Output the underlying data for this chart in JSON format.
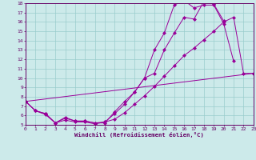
{
  "xlabel": "Windchill (Refroidissement éolien,°C)",
  "bg_color": "#cceaea",
  "line_color": "#990099",
  "grid_color": "#99cccc",
  "xmin": 0,
  "xmax": 23,
  "ymin": 5,
  "ymax": 18,
  "xticks": [
    0,
    1,
    2,
    3,
    4,
    5,
    6,
    7,
    8,
    9,
    10,
    11,
    12,
    13,
    14,
    15,
    16,
    17,
    18,
    19,
    20,
    21,
    22,
    23
  ],
  "yticks": [
    5,
    6,
    7,
    8,
    9,
    10,
    11,
    12,
    13,
    14,
    15,
    16,
    17,
    18
  ],
  "series1_x": [
    0,
    1,
    2,
    3,
    4,
    5,
    6,
    7,
    8,
    9,
    10,
    11,
    12,
    13,
    14,
    15,
    16,
    17,
    18,
    19,
    20,
    21
  ],
  "series1_y": [
    7.5,
    6.5,
    6.2,
    5.2,
    5.7,
    5.4,
    5.4,
    5.2,
    5.3,
    6.2,
    7.2,
    8.5,
    10.0,
    13.0,
    14.8,
    17.8,
    18.3,
    17.5,
    17.8,
    17.8,
    15.8,
    11.8
  ],
  "series2_x": [
    0,
    1,
    2,
    3,
    4,
    5,
    6,
    7,
    8,
    9,
    10,
    11,
    12,
    13,
    14,
    15,
    16,
    17,
    18,
    19,
    20
  ],
  "series2_y": [
    7.5,
    6.5,
    6.2,
    5.2,
    5.8,
    5.4,
    5.4,
    5.2,
    5.2,
    6.4,
    7.5,
    8.5,
    10.0,
    10.5,
    13.0,
    14.8,
    16.5,
    16.3,
    18.2,
    17.9,
    16.1
  ],
  "series3_x": [
    0,
    1,
    2,
    3,
    4,
    5,
    6,
    7,
    8,
    9,
    10,
    11,
    12,
    13,
    14,
    15,
    16,
    17,
    18,
    19,
    20,
    21,
    22,
    23
  ],
  "series3_y": [
    7.5,
    6.5,
    6.1,
    5.2,
    5.5,
    5.3,
    5.3,
    5.1,
    5.3,
    5.6,
    6.3,
    7.2,
    8.1,
    9.1,
    10.2,
    11.3,
    12.4,
    13.2,
    14.1,
    15.0,
    16.0,
    16.5,
    10.5,
    10.5
  ],
  "series4_x": [
    0,
    23
  ],
  "series4_y": [
    7.5,
    10.5
  ]
}
